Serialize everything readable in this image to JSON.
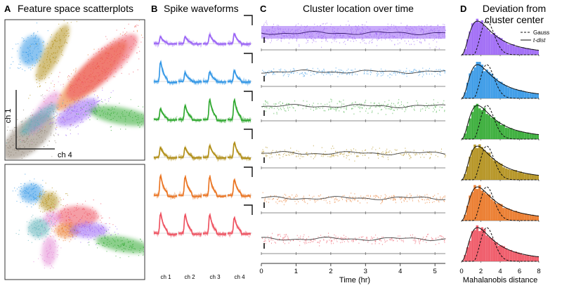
{
  "panels": {
    "A": {
      "letter": "A",
      "title": "Feature space scatterplots",
      "axis_y": "ch 1",
      "axis_x": "ch 4"
    },
    "B": {
      "letter": "B",
      "title": "Spike waveforms",
      "channels": [
        "ch 1",
        "ch 2",
        "ch 3",
        "ch 4"
      ]
    },
    "C": {
      "letter": "C",
      "title": "Cluster location over time",
      "xlabel": "Time (hr)"
    },
    "D": {
      "letter": "D",
      "title_line1": "Deviation from",
      "title_line2": "cluster center",
      "legend_gauss": "Gauss",
      "legend_tdist": "t-dist",
      "xlabel": "Mahalanobis distance"
    }
  },
  "cluster_colors": [
    "#9a63f5",
    "#2f95e6",
    "#2ea82e",
    "#b08d14",
    "#ea7320",
    "#ee4f5e"
  ],
  "extra_cluster_colors": [
    "#5ab0b8",
    "#e58cd6"
  ],
  "chart_data": [
    {
      "type": "line",
      "title": "Cluster location over time",
      "xlabel": "Time (hr)",
      "xlim": [
        0,
        5.3
      ],
      "xticks": [
        0,
        1,
        2,
        3,
        4,
        5
      ],
      "series": [
        {
          "name": "cluster 1 (purple)"
        },
        {
          "name": "cluster 2 (blue)"
        },
        {
          "name": "cluster 3 (green)"
        },
        {
          "name": "cluster 4 (olive)"
        },
        {
          "name": "cluster 5 (orange)"
        },
        {
          "name": "cluster 6 (red)"
        }
      ]
    },
    {
      "type": "bar",
      "title": "Deviation from cluster center",
      "xlabel": "Mahalanobis distance",
      "xlim": [
        0,
        8
      ],
      "xticks": [
        0,
        2,
        4,
        6,
        8
      ],
      "legend": [
        "Gauss",
        "t-dist"
      ],
      "series": [
        {
          "name": "cluster 1 (purple)"
        },
        {
          "name": "cluster 2 (blue)"
        },
        {
          "name": "cluster 3 (green)"
        },
        {
          "name": "cluster 4 (olive)"
        },
        {
          "name": "cluster 5 (orange)"
        },
        {
          "name": "cluster 6 (red)"
        }
      ]
    }
  ]
}
